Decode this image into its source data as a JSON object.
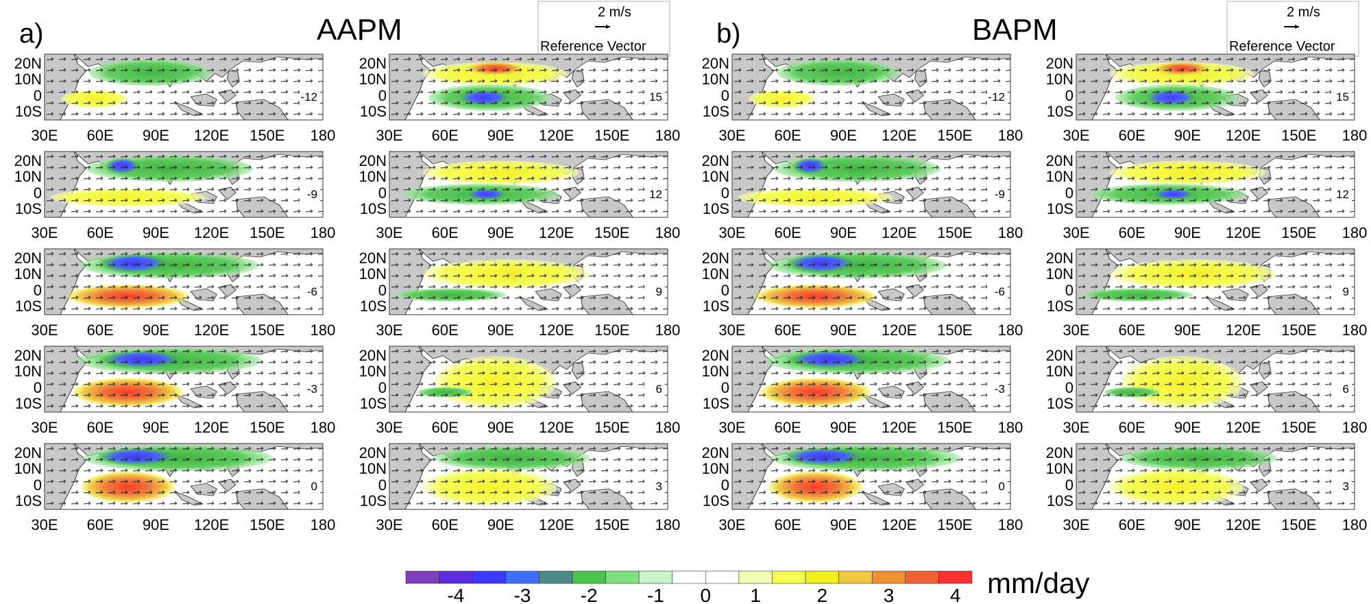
{
  "panels": [
    {
      "letter": "a)",
      "title": "AAPM",
      "lags_left": [
        "-12",
        "-9",
        "-6",
        "-3",
        "0"
      ],
      "lags_right": [
        "15",
        "12",
        "9",
        "6",
        "3"
      ]
    },
    {
      "letter": "b)",
      "title": "BAPM",
      "lags_left": [
        "-12",
        "-9",
        "-6",
        "-3",
        "0"
      ],
      "lags_right": [
        "15",
        "12",
        "9",
        "6",
        "3"
      ]
    }
  ],
  "reference_vector": {
    "magnitude": "2 m/s",
    "label": "Reference Vector"
  },
  "lon_ticks": [
    "30E",
    "60E",
    "90E",
    "120E",
    "150E",
    "180"
  ],
  "lat_ticks": [
    "20N",
    "10N",
    "0",
    "10S"
  ],
  "colorbar": {
    "unit": "mm/day",
    "ticks": [
      "-4",
      "-3",
      "-2",
      "-1",
      "0",
      "1",
      "2",
      "3",
      "4"
    ],
    "colors": [
      "#7f3fbf",
      "#5a2ee0",
      "#3a3aff",
      "#3f6fff",
      "#4a8c8c",
      "#4cc24c",
      "#7fe07f",
      "#c8f5c8",
      "#ffffff",
      "#ffffff",
      "#f2ffb0",
      "#f5ff50",
      "#f0f020",
      "#f0c840",
      "#f09030",
      "#f06030",
      "#ff3030"
    ]
  }
}
